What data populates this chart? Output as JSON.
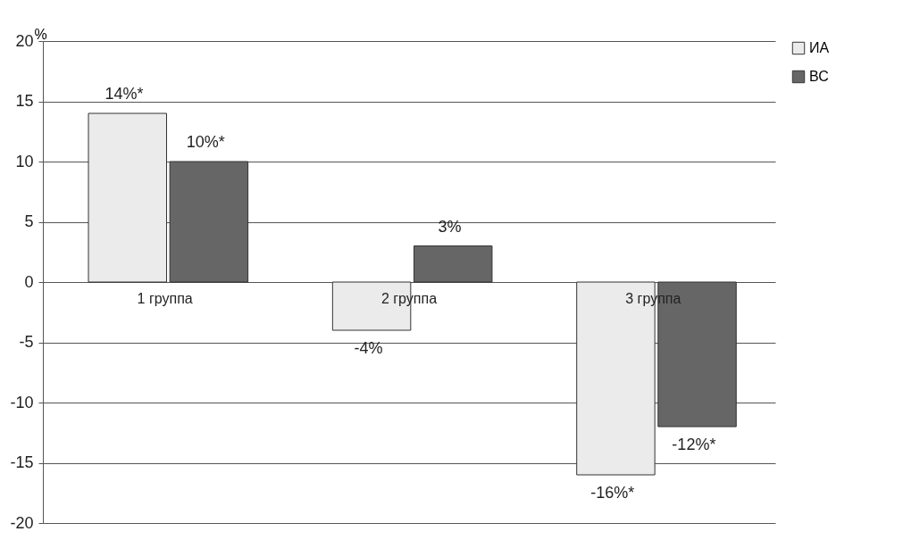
{
  "chart_data": {
    "type": "bar",
    "ylabel": "%",
    "categories": [
      "1 группа",
      "2 группа",
      "3 группа"
    ],
    "series": [
      {
        "name": "ИА",
        "color": "#ebebeb",
        "values": [
          14,
          -4,
          -16
        ],
        "value_labels": [
          "14%*",
          "-4%",
          "-16%*"
        ]
      },
      {
        "name": "ВС",
        "color": "#666666",
        "values": [
          10,
          3,
          -12
        ],
        "value_labels": [
          "10%*",
          "3%",
          "-12%*"
        ]
      }
    ],
    "ylim": [
      -20,
      20
    ],
    "yticks": [
      -20,
      -15,
      -10,
      -5,
      0,
      5,
      10,
      15,
      20
    ],
    "grid": "y",
    "legend": "right"
  }
}
